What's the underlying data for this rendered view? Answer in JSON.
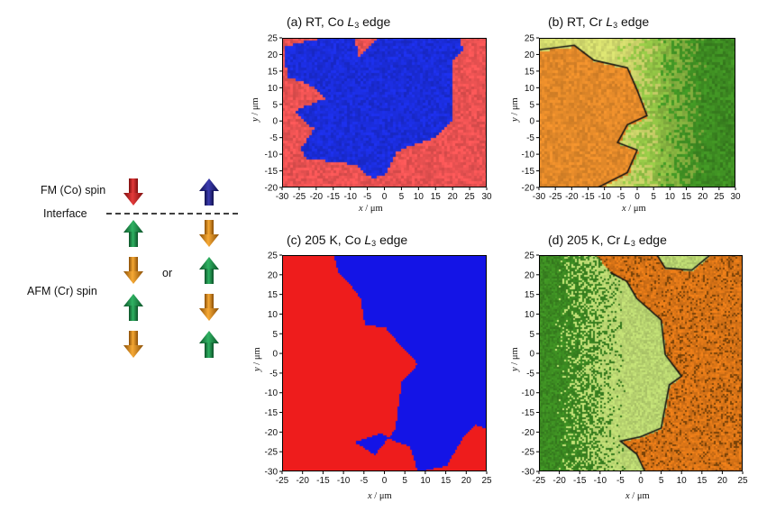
{
  "schematic": {
    "fm_label": "FM (Co) spin",
    "interface_label": "Interface",
    "afm_label": "AFM (Cr) spin",
    "or_label": "or",
    "colors": {
      "red": "#cc1f1f",
      "blue": "#1f1f8c",
      "green": "#1a8a45",
      "orange": "#e08b13"
    },
    "config_left": {
      "fm": "down-red",
      "afm": [
        "up-green",
        "down-orange",
        "up-green",
        "down-orange"
      ]
    },
    "config_right": {
      "fm": "up-blue",
      "afm": [
        "down-orange",
        "up-green",
        "down-orange",
        "up-green"
      ]
    }
  },
  "panels": [
    {
      "id": "a",
      "title_pre": "(a) RT, Co ",
      "title_edge": "L",
      "title_sub": "3",
      "title_post": " edge",
      "x_label_var": "x",
      "x_label_unit": " / μm",
      "y_label_var": "y",
      "y_label_unit": " / μm",
      "colormap": "Co-RT (red / blue)",
      "colors": [
        "#f25555",
        "#1c2ee0"
      ]
    },
    {
      "id": "b",
      "title_pre": "(b) RT, Cr ",
      "title_edge": "L",
      "title_sub": "3",
      "title_post": " edge",
      "x_label_var": "x",
      "x_label_unit": " / μm",
      "y_label_var": "y",
      "y_label_unit": " / μm",
      "colormap": "Cr (orange / yellow-green / green)",
      "colors": [
        "#e2892a",
        "#d8e070",
        "#3d8a22"
      ]
    },
    {
      "id": "c",
      "title_pre": "(c) 205 K, Co ",
      "title_edge": "L",
      "title_sub": "3",
      "title_post": " edge",
      "x_label_var": "x",
      "x_label_unit": " / μm",
      "y_label_var": "y",
      "y_label_unit": " / μm",
      "colormap": "Co-205K (red / blue)",
      "colors": [
        "#ee1c1c",
        "#1414e6"
      ]
    },
    {
      "id": "d",
      "title_pre": "(d) 205 K, Cr ",
      "title_edge": "L",
      "title_sub": "3",
      "title_post": " edge",
      "x_label_var": "x",
      "x_label_unit": " / μm",
      "y_label_var": "y",
      "y_label_unit": " / μm",
      "colormap": "Cr (orange / green)",
      "colors": [
        "#e07818",
        "#b8d470",
        "#3c8a22"
      ]
    }
  ],
  "chart_data": [
    {
      "type": "heatmap",
      "title": "(a) RT, Co L3 edge",
      "xlabel": "x / μm",
      "ylabel": "y / μm",
      "xlim": [
        -30,
        30
      ],
      "ylim": [
        -20,
        25
      ],
      "x_ticks": [
        "-30",
        "-25",
        "-20",
        "-15",
        "-10",
        "-5",
        "0",
        "5",
        "10",
        "15",
        "20",
        "25",
        "30"
      ],
      "y_ticks": [
        "25",
        "20",
        "15",
        "10",
        "5",
        "0",
        "-5",
        "-10",
        "-15",
        "-20"
      ],
      "domains": [
        "red",
        "blue"
      ]
    },
    {
      "type": "heatmap",
      "title": "(b) RT, Cr L3 edge",
      "xlabel": "x / μm",
      "ylabel": "y / μm",
      "xlim": [
        -30,
        30
      ],
      "ylim": [
        -20,
        25
      ],
      "x_ticks": [
        "-30",
        "-25",
        "-20",
        "-15",
        "-10",
        "-5",
        "0",
        "5",
        "10",
        "15",
        "20",
        "25",
        "30"
      ],
      "y_ticks": [
        "25",
        "20",
        "15",
        "10",
        "5",
        "0",
        "-5",
        "-10",
        "-15",
        "-20"
      ],
      "domains": [
        "orange",
        "yellow-green",
        "green"
      ]
    },
    {
      "type": "heatmap",
      "title": "(c) 205 K, Co L3 edge",
      "xlabel": "x / μm",
      "ylabel": "y / μm",
      "xlim": [
        -25,
        25
      ],
      "ylim": [
        -30,
        25
      ],
      "x_ticks": [
        "-25",
        "-20",
        "-15",
        "-10",
        "-5",
        "0",
        "5",
        "10",
        "15",
        "20",
        "25"
      ],
      "y_ticks": [
        "25",
        "20",
        "15",
        "10",
        "5",
        "0",
        "-5",
        "-10",
        "-15",
        "-20",
        "-25",
        "-30"
      ],
      "domains": [
        "red",
        "blue"
      ]
    },
    {
      "type": "heatmap",
      "title": "(d) 205 K, Cr L3 edge",
      "xlabel": "x / μm",
      "ylabel": "y / μm",
      "xlim": [
        -25,
        25
      ],
      "ylim": [
        -30,
        25
      ],
      "x_ticks": [
        "-25",
        "-20",
        "-15",
        "-10",
        "-5",
        "0",
        "5",
        "10",
        "15",
        "20",
        "25"
      ],
      "y_ticks": [
        "25",
        "20",
        "15",
        "10",
        "5",
        "0",
        "-5",
        "-10",
        "-15",
        "-20",
        "-25",
        "-30"
      ],
      "domains": [
        "green",
        "orange"
      ]
    }
  ]
}
